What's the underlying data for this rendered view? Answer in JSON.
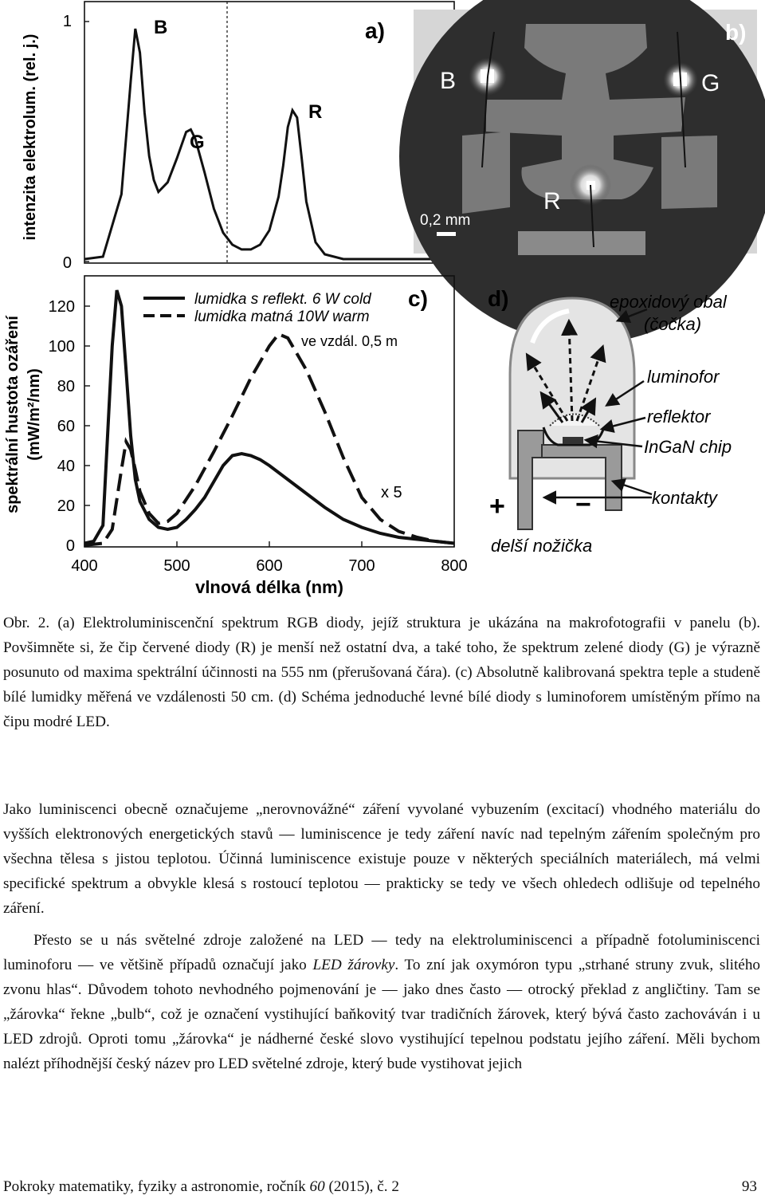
{
  "figure": {
    "panel_a": {
      "label": "a)",
      "ylabel": "intenzita elektrolum. (rel. j.)",
      "y_ticks": [
        "1",
        "0"
      ],
      "peak_labels": [
        "B",
        "G",
        "R"
      ]
    },
    "panel_b": {
      "label": "b)",
      "chip_labels": [
        "B",
        "G",
        "R"
      ],
      "scale_label": "0,2 mm"
    },
    "panel_c": {
      "label": "c)",
      "ylabel": "spektrální hustota ozáření",
      "ylabel_unit": "(mW/m²/nm)",
      "xlabel": "vlnová délka (nm)",
      "legend": [
        "lumidka s reflekt. 6 W cold",
        "lumidka matná 10W warm"
      ],
      "distance_note": "ve vzdál. 0,5 m",
      "scale_note": "x 5",
      "x_ticks": [
        "400",
        "500",
        "600",
        "700",
        "800"
      ],
      "y_ticks": [
        "0",
        "20",
        "40",
        "60",
        "80",
        "100",
        "120"
      ]
    },
    "panel_d": {
      "label": "d)",
      "callouts": [
        "epoxidový obal",
        "(čočka)",
        "luminofor",
        "reflektor",
        "InGaN chip",
        "kontakty"
      ],
      "plus": "+",
      "minus": "−",
      "long_leg": "delší nožička"
    }
  },
  "chart_data": [
    {
      "type": "line",
      "title": "",
      "xlabel": "",
      "ylabel": "intenzita elektrolum. (rel. j.)",
      "xlim": [
        400,
        800
      ],
      "ylim": [
        0,
        1
      ],
      "annotations": [
        "B",
        "G",
        "R"
      ],
      "reference_line_x": 555,
      "series": [
        {
          "x": [
            400,
            420,
            440,
            450,
            455,
            460,
            465,
            470,
            475,
            480,
            490,
            500,
            510,
            515,
            520,
            530,
            540,
            550,
            560,
            570,
            580,
            590,
            600,
            610,
            615,
            620,
            625,
            630,
            635,
            640,
            650,
            660,
            680,
            700,
            730,
            760,
            790
          ],
          "values": [
            0.01,
            0.02,
            0.28,
            0.75,
            0.97,
            0.87,
            0.62,
            0.44,
            0.34,
            0.29,
            0.33,
            0.43,
            0.54,
            0.55,
            0.51,
            0.37,
            0.22,
            0.12,
            0.07,
            0.05,
            0.05,
            0.07,
            0.13,
            0.27,
            0.4,
            0.56,
            0.63,
            0.6,
            0.43,
            0.25,
            0.08,
            0.03,
            0.01,
            0.01,
            0.01,
            0.01,
            0.01
          ]
        }
      ]
    },
    {
      "type": "line",
      "title": "",
      "xlabel": "vlnová délka (nm)",
      "ylabel": "spektrální hustota ozáření (mW/m²/nm)",
      "xlim": [
        400,
        800
      ],
      "ylim": [
        0,
        130
      ],
      "legend_position": "top",
      "series": [
        {
          "name": "lumidka s reflekt. 6 W cold",
          "style": "solid",
          "x": [
            400,
            410,
            420,
            430,
            435,
            440,
            445,
            450,
            455,
            460,
            470,
            480,
            490,
            500,
            510,
            520,
            530,
            540,
            550,
            560,
            570,
            580,
            590,
            600,
            620,
            640,
            660,
            680,
            700,
            720,
            740,
            760,
            780,
            800
          ],
          "values": [
            1,
            2,
            10,
            100,
            128,
            120,
            88,
            55,
            33,
            22,
            13,
            9,
            8,
            9,
            13,
            18,
            24,
            32,
            40,
            45,
            46,
            45,
            43,
            40,
            33,
            26,
            19,
            13,
            9,
            6,
            4,
            3,
            2,
            1
          ]
        },
        {
          "name": "lumidka matná 10W warm",
          "style": "dashed",
          "x": [
            400,
            420,
            430,
            440,
            445,
            450,
            455,
            460,
            470,
            480,
            490,
            500,
            520,
            540,
            560,
            580,
            600,
            610,
            620,
            640,
            660,
            680,
            700,
            720,
            740,
            760,
            780,
            800
          ],
          "values": [
            0,
            1,
            8,
            38,
            52,
            48,
            38,
            27,
            16,
            11,
            12,
            16,
            30,
            47,
            65,
            84,
            100,
            106,
            104,
            88,
            67,
            44,
            24,
            13,
            7,
            4,
            2,
            1
          ]
        }
      ],
      "annotations": [
        "ve vzdál. 0,5 m",
        "x 5"
      ]
    }
  ],
  "caption": {
    "label": "Obr. 2.",
    "text": "(a) Elektroluminiscenční spektrum RGB diody, jejíž struktura je ukázána na makrofotografii v panelu (b). Povšimněte si, že čip červené diody (R) je menší než ostatní dva, a také toho, že spektrum zelené diody (G) je výrazně posunuto od maxima spektrální účinnosti na 555 nm (přerušovaná čára). (c) Absolutně kalibrovaná spektra teple a studeně bílé lumidky měřená ve vzdálenosti 50 cm. (d) Schéma jednoduché levné bílé diody s luminoforem umístěným přímo na čipu modré LED."
  },
  "body": {
    "p1": "Jako luminiscenci obecně označujeme „nerovnovážné“ záření vyvolané vybuzením (excitací) vhodného materiálu do vyšších elektronových energetických stavů — luminiscence je tedy záření navíc nad tepelným zářením společným pro všechna tělesa s jistou teplotou. Účinná luminiscence existuje pouze v některých speciálních materiálech, má velmi specifické spektrum a obvykle klesá s rostoucí teplotou — prakticky se tedy ve všech ohledech odlišuje od tepelného záření.",
    "p2_a": "Přesto se u nás světelné zdroje založené na LED — tedy na elektroluminiscenci a případně fotoluminiscenci luminoforu — ve většině případů označují jako ",
    "p2_em": "LED žárovky",
    "p2_b": ". To zní jak oxymóron typu „strhané struny zvuk, slitého zvonu hlas“. Důvodem tohoto nevhodného pojmenování je — jako dnes často — otrocký překlad z angličtiny. Tam se „žárovka“ řekne „bulb“, což je označení vystihující baňkovitý tvar tradičních žárovek, který bývá často zachováván i u LED zdrojů. Oproti tomu „žárovka“ je nádherné české slovo vystihující tepelnou podstatu jejího záření. Měli bychom nalézt příhodnější český název pro LED světelné zdroje, který bude vystihovat jejich"
  },
  "footer": {
    "journal": "Pokroky matematiky, fyziky a astronomie, ročník",
    "volume": "60",
    "year_issue": "(2015), č. 2",
    "page": "93"
  }
}
